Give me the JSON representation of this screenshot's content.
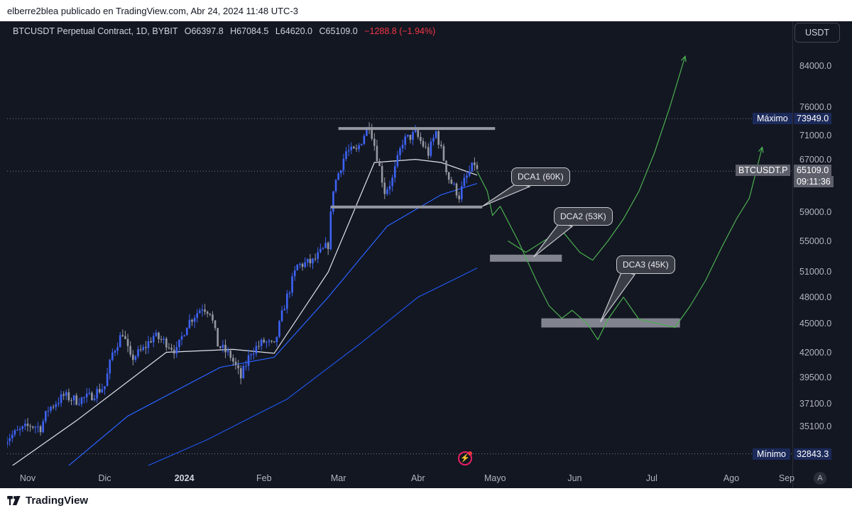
{
  "header": {
    "publisher_line": "elberre2blea publicado en TradingView.com, Abr 24, 2024 11:48 UTC-3"
  },
  "legend": {
    "symbol": "BTCUSDT Perpetual Contract, 1D, BYBIT",
    "open": "O66397.8",
    "high": "H67084.5",
    "low": "L64620.0",
    "close": "C65109.0",
    "change": "−1288.8 (−1.94%)"
  },
  "axis": {
    "currency": "USDT",
    "y_ticks": [
      "84000.0",
      "76000.0",
      "71000.0",
      "67000.0",
      "63000.0",
      "59000.0",
      "55000.0",
      "51000.0",
      "48000.0",
      "45000.0",
      "42000.0",
      "39500.0",
      "37100.0",
      "35100.0"
    ],
    "x_ticks": [
      "Nov",
      "Dic",
      "2024",
      "Feb",
      "Mar",
      "Abr",
      "Mayo",
      "Jun",
      "Jul",
      "Ago",
      "Sep"
    ],
    "auto_button": "A"
  },
  "labels": {
    "max_label": "Máximo",
    "max_value": "73949.0",
    "min_label": "Mínimo",
    "min_value": "32843.3",
    "symbol_tag": "BTCUSDT.P",
    "last_price": "65109.0",
    "countdown": "09:11:36"
  },
  "callouts": {
    "dca1": "DCA1 (60K)",
    "dca2": "DCA2 (53K)",
    "dca3": "DCA3 (45K)"
  },
  "footer": {
    "brand": "TradingView"
  },
  "colors": {
    "background": "#131722",
    "candle_up": "#3d63f5",
    "candle_down": "#9598a1",
    "ema_fast": "#e0e3eb",
    "ema_mid": "#2962ff",
    "ema_slow": "#1e53e5",
    "projection": "#4caf50",
    "zone": "#9598a1",
    "label_bg": "#1c2a5a",
    "price_tag": "#5d606b"
  },
  "chart_data": {
    "type": "candlestick",
    "symbol": "BTCUSDT Perpetual Contract",
    "interval": "1D",
    "exchange": "BYBIT",
    "last": {
      "open": 66397.8,
      "high": 67084.5,
      "low": 64620.0,
      "close": 65109.0,
      "change": -1288.8,
      "change_pct": -1.94
    },
    "y_scale": "log",
    "y_range": [
      32000,
      90000
    ],
    "x_range": [
      "2023-10-23",
      "2024-09-04"
    ],
    "close_path": [
      [
        "2023-10-23",
        34000
      ],
      [
        "2023-10-27",
        34500
      ],
      [
        "2023-11-02",
        35200
      ],
      [
        "2023-11-06",
        35000
      ],
      [
        "2023-11-09",
        36600
      ],
      [
        "2023-11-15",
        37800
      ],
      [
        "2023-11-20",
        37400
      ],
      [
        "2023-11-25",
        37700
      ],
      [
        "2023-12-01",
        38700
      ],
      [
        "2023-12-04",
        41900
      ],
      [
        "2023-12-08",
        44100
      ],
      [
        "2023-12-11",
        41300
      ],
      [
        "2023-12-16",
        42300
      ],
      [
        "2023-12-20",
        43700
      ],
      [
        "2023-12-25",
        43000
      ],
      [
        "2023-12-29",
        42100
      ],
      [
        "2024-01-02",
        45000
      ],
      [
        "2024-01-08",
        46900
      ],
      [
        "2024-01-11",
        46400
      ],
      [
        "2024-01-14",
        42800
      ],
      [
        "2024-01-19",
        41600
      ],
      [
        "2024-01-23",
        39500
      ],
      [
        "2024-01-27",
        42100
      ],
      [
        "2024-02-01",
        43100
      ],
      [
        "2024-02-05",
        42600
      ],
      [
        "2024-02-09",
        47100
      ],
      [
        "2024-02-14",
        51800
      ],
      [
        "2024-02-20",
        52300
      ],
      [
        "2024-02-26",
        54500
      ],
      [
        "2024-02-28",
        62500
      ],
      [
        "2024-03-04",
        68300
      ],
      [
        "2024-03-08",
        68300
      ],
      [
        "2024-03-13",
        73100
      ],
      [
        "2024-03-19",
        62000
      ],
      [
        "2024-03-22",
        63800
      ],
      [
        "2024-03-26",
        70000
      ],
      [
        "2024-03-31",
        71300
      ],
      [
        "2024-04-05",
        68000
      ],
      [
        "2024-04-08",
        71600
      ],
      [
        "2024-04-13",
        64000
      ],
      [
        "2024-04-17",
        61300
      ],
      [
        "2024-04-19",
        63500
      ],
      [
        "2024-04-23",
        66400
      ],
      [
        "2024-04-24",
        65109
      ]
    ],
    "moving_averages": [
      {
        "values": [
          [
            "2023-10-23",
            31500
          ],
          [
            "2023-11-20",
            35600
          ],
          [
            "2023-12-25",
            42000
          ],
          [
            "2024-01-20",
            42300
          ],
          [
            "2024-02-05",
            41900
          ],
          [
            "2024-02-26",
            51000
          ],
          [
            "2024-03-15",
            66500
          ],
          [
            "2024-03-31",
            67000
          ],
          [
            "2024-04-10",
            66500
          ],
          [
            "2024-04-24",
            64500
          ]
        ]
      },
      {
        "values": [
          [
            "2023-11-05",
            30000
          ],
          [
            "2023-12-10",
            36000
          ],
          [
            "2024-01-15",
            40500
          ],
          [
            "2024-02-05",
            41500
          ],
          [
            "2024-02-26",
            48000
          ],
          [
            "2024-03-20",
            57000
          ],
          [
            "2024-04-10",
            61500
          ],
          [
            "2024-04-24",
            63200
          ]
        ]
      },
      {
        "values": [
          [
            "2023-11-25",
            30000
          ],
          [
            "2024-01-10",
            34000
          ],
          [
            "2024-02-10",
            37500
          ],
          [
            "2024-03-10",
            43000
          ],
          [
            "2024-04-01",
            48000
          ],
          [
            "2024-04-24",
            51500
          ]
        ]
      }
    ],
    "horizontal_lines": [
      {
        "price": 73949.0,
        "label": "Máximo"
      },
      {
        "price": 65109.0,
        "label": "BTCUSDT.P"
      },
      {
        "price": 32843.3,
        "label": "Mínimo"
      }
    ],
    "range_lines": [
      {
        "price": 72200,
        "from": "2024-03-01",
        "to": "2024-05-01"
      },
      {
        "price": 59700,
        "from": "2024-02-27",
        "to": "2024-04-26"
      }
    ],
    "zones": [
      {
        "from": "2024-04-29",
        "to": "2024-05-27",
        "low": 52300,
        "high": 53200,
        "label": "DCA2 (53K)"
      },
      {
        "from": "2024-05-19",
        "to": "2024-07-12",
        "low": 44600,
        "high": 45600,
        "label": "DCA3 (45K)"
      }
    ],
    "annotations": [
      {
        "text": "DCA1 (60K)",
        "date": "2024-04-26",
        "price": 59800
      },
      {
        "text": "DCA2 (53K)",
        "date": "2024-05-16",
        "price": 52900
      },
      {
        "text": "DCA3 (45K)",
        "date": "2024-06-11",
        "price": 45200
      }
    ],
    "projection_paths": [
      [
        [
          "2024-04-24",
          65100
        ],
        [
          "2024-04-28",
          62000
        ],
        [
          "2024-04-30",
          58500
        ],
        [
          "2024-05-03",
          59800
        ],
        [
          "2024-05-10",
          55000
        ],
        [
          "2024-05-17",
          50000
        ],
        [
          "2024-05-22",
          47000
        ],
        [
          "2024-05-27",
          45600
        ],
        [
          "2024-05-31",
          46500
        ],
        [
          "2024-06-06",
          45000
        ],
        [
          "2024-06-10",
          43300
        ],
        [
          "2024-06-14",
          45500
        ],
        [
          "2024-06-20",
          48000
        ],
        [
          "2024-06-26",
          45500
        ],
        [
          "2024-07-04",
          45000
        ],
        [
          "2024-07-10",
          44600
        ],
        [
          "2024-07-16",
          47000
        ],
        [
          "2024-07-22",
          50000
        ],
        [
          "2024-07-28",
          54000
        ],
        [
          "2024-08-03",
          58000
        ],
        [
          "2024-08-08",
          61000
        ],
        [
          "2024-08-13",
          69000
        ]
      ],
      [
        [
          "2024-05-06",
          55000
        ],
        [
          "2024-05-13",
          53500
        ],
        [
          "2024-05-20",
          55000
        ],
        [
          "2024-05-27",
          56400
        ],
        [
          "2024-06-03",
          53500
        ],
        [
          "2024-06-08",
          52500
        ],
        [
          "2024-06-14",
          55000
        ],
        [
          "2024-06-20",
          58000
        ],
        [
          "2024-06-26",
          62000
        ],
        [
          "2024-07-02",
          68000
        ],
        [
          "2024-07-08",
          76000
        ],
        [
          "2024-07-14",
          86000
        ]
      ]
    ]
  }
}
